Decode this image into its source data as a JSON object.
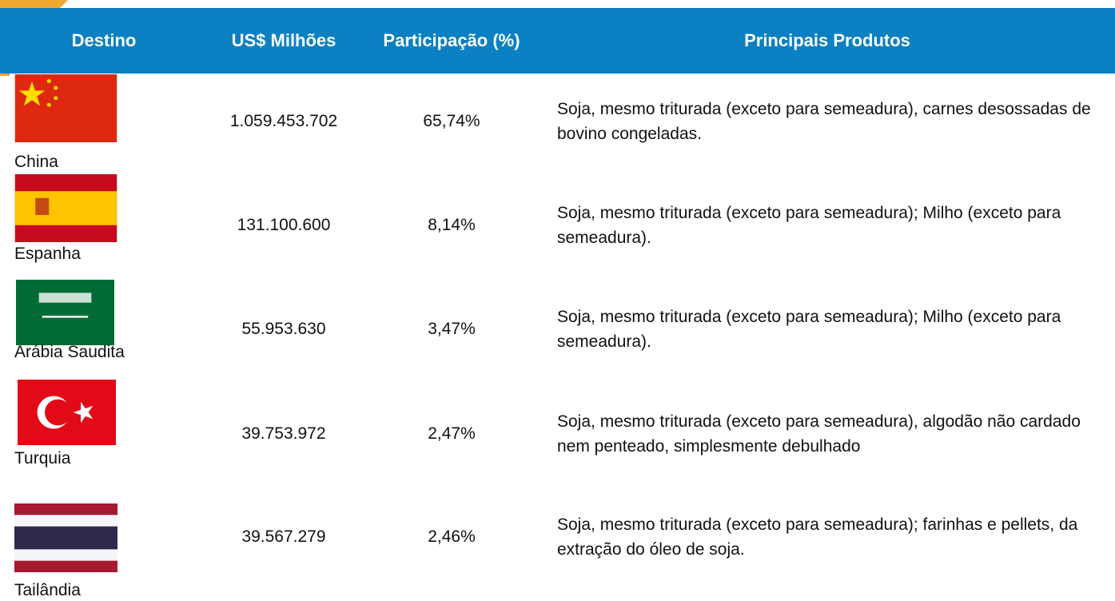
{
  "table": {
    "headers": [
      "Destino",
      "US$ Milhões",
      "Participação (%)",
      "Principais Produtos"
    ],
    "rows": [
      [
        "China",
        "1.059.453.702",
        "65,74%",
        "Soja, mesmo triturada (exceto para semeadura), carnes desossadas de bovino congeladas."
      ],
      [
        "Espanha",
        "131.100.600",
        "8,14%",
        "Soja, mesmo triturada (exceto para semeadura); Milho (exceto para semeadura)."
      ],
      [
        "Arábia Saudita",
        "55.953.630",
        "3,47%",
        "Soja, mesmo triturada (exceto para semeadura); Milho (exceto para semeadura)."
      ],
      [
        "Turquia",
        "39.753.972",
        "2,47%",
        "Soja, mesmo triturada (exceto para semeadura), algodão não cardado nem penteado, simplesmente debulhado"
      ],
      [
        "Tailândia",
        "39.567.279",
        "2,46%",
        "Soja, mesmo triturada (exceto para semeadura); farinhas e pellets, da extração do óleo de soja."
      ]
    ]
  }
}
